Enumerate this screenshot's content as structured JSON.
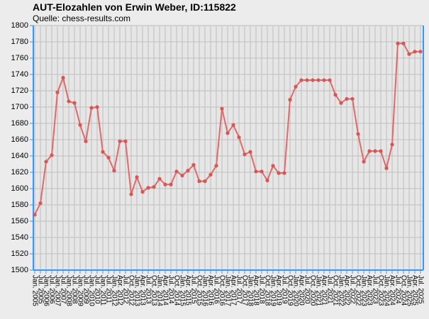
{
  "chart_data": {
    "type": "line",
    "title": "AUT-Elozahlen von Erwin Weber, ID:115822",
    "subtitle": "Quelle: chess-results.com",
    "categories": [
      "Jan. 2005",
      "Jul. 2005",
      "Jan. 2006",
      "Jul. 2006",
      "Jan. 2007",
      "Jul. 2007",
      "Jan. 2008",
      "Jul. 2008",
      "Jan. 2009",
      "Jul. 2009",
      "Jan. 2010",
      "Jul. 2010",
      "Jan. 2011",
      "Jul. 2011",
      "Jan. 2012",
      "Apr. 2012",
      "Jul. 2012",
      "Oct. 2012",
      "Jan. 2013",
      "Apr. 2013",
      "Jul. 2013",
      "Oct. 2013",
      "Jan. 2014",
      "Apr. 2014",
      "Jul. 2014",
      "Oct. 2014",
      "Jan. 2015",
      "Apr. 2015",
      "Jul. 2015",
      "Oct. 2015",
      "Jan. 2016",
      "Apr. 2016",
      "Jul. 2016",
      "Oct. 2016",
      "Jan. 2017",
      "Apr. 2017",
      "Jul. 2017",
      "Oct. 2017",
      "Jan. 2018",
      "Apr. 2018",
      "Jul. 2018",
      "Oct. 2018",
      "Jan. 2019",
      "Apr. 2019",
      "Jul. 2019",
      "Oct. 2019",
      "Jan. 2020",
      "Apr. 2020",
      "Jul. 2020",
      "Oct. 2020",
      "Jan. 2021",
      "Apr. 2021",
      "Jul. 2021",
      "Oct. 2021",
      "Jan. 2022",
      "Apr. 2022",
      "Jul. 2022",
      "Oct. 2022",
      "Jan. 2023",
      "Apr. 2023",
      "Jul. 2023",
      "Oct. 2023",
      "Jan. 2024",
      "Apr. 2024",
      "Jul. 2024",
      "Oct. 2024",
      "Jan. 2025",
      "Apr. 2025",
      "Jul. 2025"
    ],
    "series": [
      {
        "name": "Elo",
        "color": "#e06a6a",
        "marker_color": "#d95555",
        "values": [
          1568,
          1582,
          1633,
          1641,
          1718,
          1736,
          1707,
          1705,
          1678,
          1658,
          1699,
          1700,
          1645,
          1638,
          1622,
          1658,
          1658,
          1593,
          1614,
          1596,
          1601,
          1602,
          1612,
          1605,
          1605,
          1621,
          1616,
          1622,
          1629,
          1609,
          1609,
          1617,
          1628,
          1698,
          1668,
          1678,
          1663,
          1642,
          1645,
          1621,
          1621,
          1610,
          1628,
          1619,
          1619,
          1709,
          1725,
          1733,
          1733,
          1733,
          1733,
          1733,
          1733,
          1715,
          1705,
          1710,
          1710,
          1667,
          1633,
          1646,
          1646,
          1646,
          1625,
          1654,
          1778,
          1778,
          1765,
          1768,
          1768
        ]
      }
    ],
    "ylim": [
      1500,
      1800
    ],
    "yticks": [
      1500,
      1520,
      1540,
      1560,
      1580,
      1600,
      1620,
      1640,
      1660,
      1680,
      1700,
      1720,
      1740,
      1760,
      1780,
      1800
    ],
    "grid": true
  }
}
